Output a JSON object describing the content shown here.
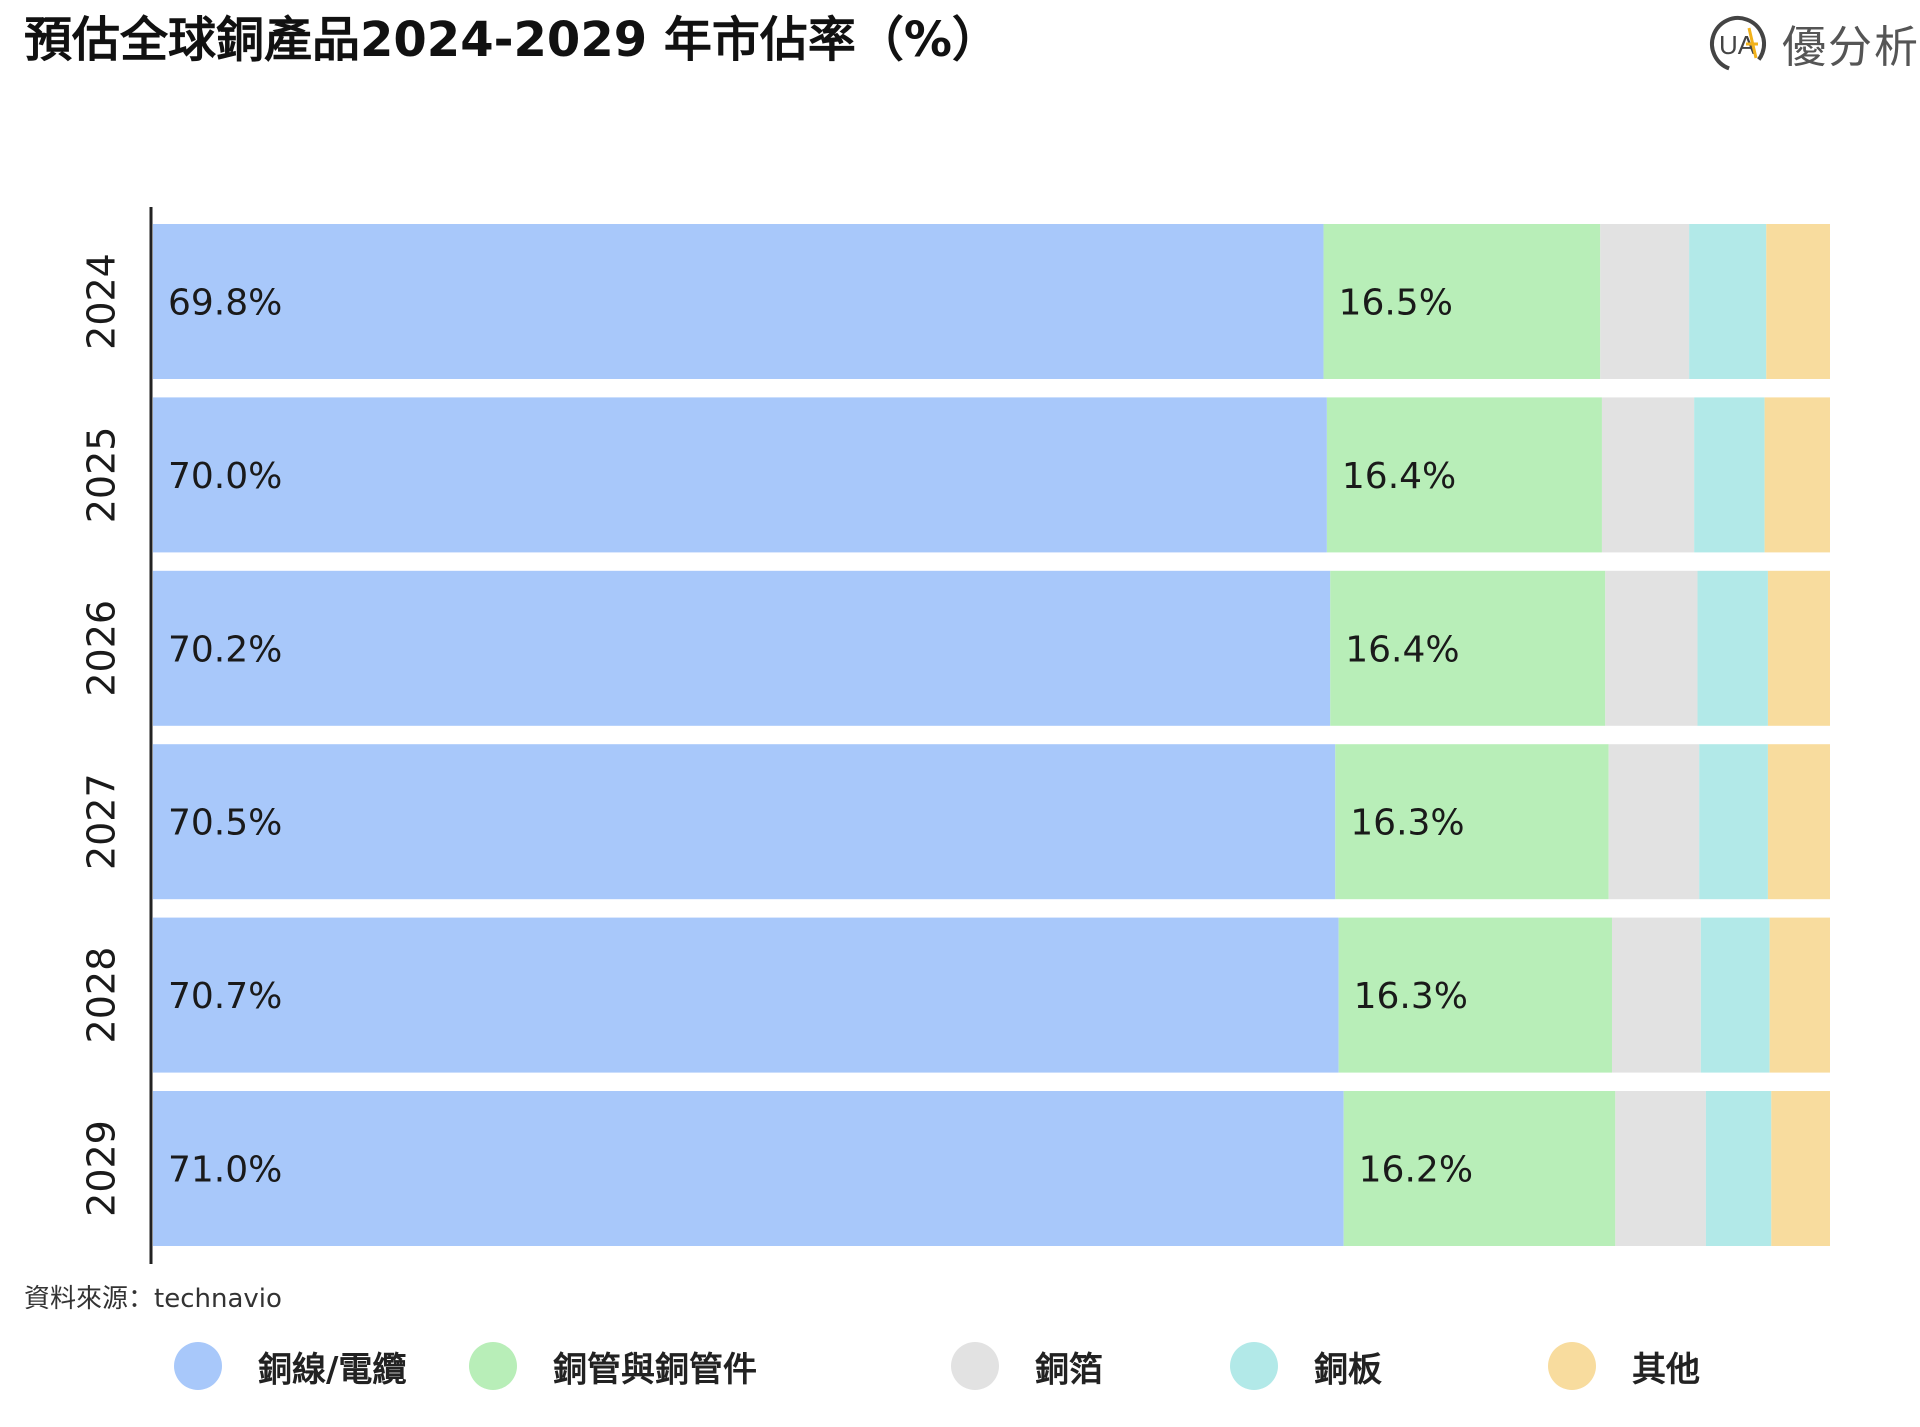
{
  "header": {
    "title": "預估全球銅產品2024-2029 年市佔率（%）",
    "brand_name": "優分析",
    "brand_logo_text": "UA"
  },
  "source": "資料來源：technavio",
  "colors": {
    "copper_wire": "#a8c8fa",
    "copper_tube": "#b8eeb8",
    "copper_foil": "#e2e2e2",
    "copper_sheet": "#b2e9e8",
    "other": "#f8dc9e",
    "axis": "#222222",
    "logo": "#444444",
    "logo_accent": "#f2b21b"
  },
  "chart_data": {
    "type": "bar",
    "orientation": "horizontal",
    "stacked": true,
    "title": "預估全球銅產品2024-2029 年市佔率（%）",
    "categories": [
      "2024",
      "2025",
      "2026",
      "2027",
      "2028",
      "2029"
    ],
    "xlim": [
      0,
      100
    ],
    "grid": false,
    "legend_position": "bottom",
    "series": [
      {
        "name": "銅線/電纜",
        "color": "#a8c8fa",
        "values": [
          69.8,
          70.0,
          70.2,
          70.5,
          70.7,
          71.0
        ],
        "labels": [
          "69.8%",
          "70.0%",
          "70.2%",
          "70.5%",
          "70.7%",
          "71.0%"
        ]
      },
      {
        "name": "銅管與銅管件",
        "color": "#b8eeb8",
        "values": [
          16.5,
          16.4,
          16.4,
          16.3,
          16.3,
          16.2
        ],
        "labels": [
          "16.5%",
          "16.4%",
          "16.4%",
          "16.3%",
          "16.3%",
          "16.2%"
        ]
      },
      {
        "name": "銅箔",
        "color": "#e2e2e2",
        "values": [
          5.3,
          5.5,
          5.5,
          5.4,
          5.3,
          5.4
        ],
        "labels": []
      },
      {
        "name": "銅板",
        "color": "#b2e9e8",
        "values": [
          4.6,
          4.2,
          4.2,
          4.1,
          4.1,
          3.9
        ],
        "labels": []
      },
      {
        "name": "其他",
        "color": "#f8dc9e",
        "values": [
          3.8,
          3.9,
          3.7,
          3.7,
          3.6,
          3.5
        ],
        "labels": []
      }
    ]
  }
}
